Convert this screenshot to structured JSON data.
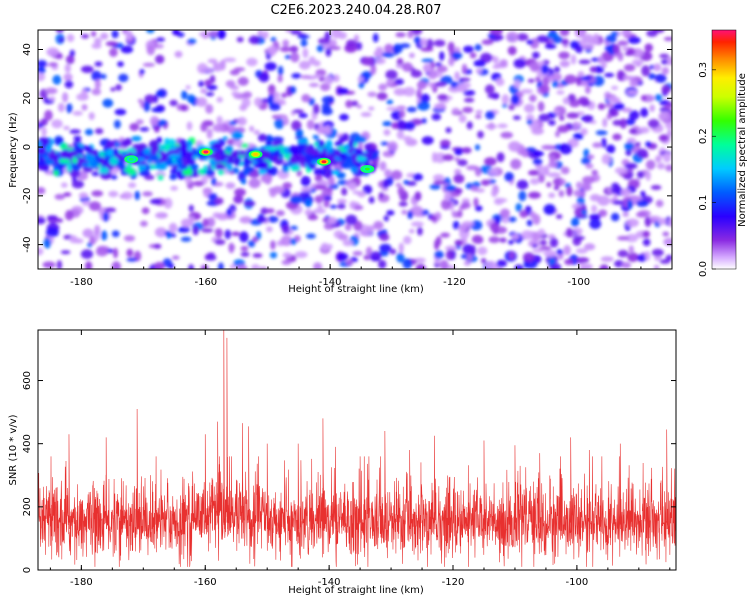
{
  "title": "C2E6.2023.240.04.28.R07",
  "chart_data": [
    {
      "type": "heatmap",
      "xlabel": "Height of straight line (km)",
      "ylabel": "Frequency (Hz)",
      "xlim": [
        -187,
        -85
      ],
      "ylim": [
        -50,
        48
      ],
      "x_ticks": [
        -180,
        -160,
        -140,
        -120,
        -100
      ],
      "y_ticks": [
        -40,
        -20,
        0,
        20,
        40
      ],
      "colorbar": {
        "label": "Normalized spectral amplitude",
        "range": [
          0.0,
          0.36
        ],
        "ticks": [
          0.0,
          0.1,
          0.2,
          0.3
        ],
        "colormap": "rainbow-white-to-red"
      },
      "features": [
        {
          "description": "high-amplitude band",
          "x_range": [
            -187,
            -133
          ],
          "frequency_center": -4,
          "frequency_halfwidth": 6
        }
      ],
      "peak_locations": [
        {
          "x": -160,
          "y": -2,
          "value": 0.36
        },
        {
          "x": -141,
          "y": -6,
          "value": 0.35
        },
        {
          "x": -152,
          "y": -3,
          "value": 0.3
        },
        {
          "x": -172,
          "y": -5,
          "value": 0.2
        },
        {
          "x": -134,
          "y": -9,
          "value": 0.22
        }
      ]
    },
    {
      "type": "line",
      "xlabel": "Height of straight line (km)",
      "ylabel": "SNR (10 * v/v)",
      "xlim": [
        -187,
        -84
      ],
      "ylim": [
        0,
        760
      ],
      "x_ticks": [
        -180,
        -160,
        -140,
        -120,
        -100
      ],
      "y_ticks": [
        0,
        200,
        400,
        600
      ],
      "series_color": "#e8302f",
      "baseline": 150,
      "noise_band": [
        50,
        300
      ],
      "spikes": [
        {
          "x": -157,
          "value": 760
        },
        {
          "x": -156.5,
          "value": 735
        },
        {
          "x": -171,
          "value": 510
        },
        {
          "x": -141,
          "value": 480
        },
        {
          "x": -158,
          "value": 470
        },
        {
          "x": -154,
          "value": 465
        },
        {
          "x": -153,
          "value": 455
        },
        {
          "x": -85.5,
          "value": 445
        },
        {
          "x": -131,
          "value": 440
        },
        {
          "x": -182,
          "value": 430
        },
        {
          "x": -160,
          "value": 430
        },
        {
          "x": -123,
          "value": 425
        },
        {
          "x": -101,
          "value": 420
        },
        {
          "x": -176,
          "value": 420
        },
        {
          "x": -115,
          "value": 410
        },
        {
          "x": -150,
          "value": 400
        },
        {
          "x": -145,
          "value": 400
        },
        {
          "x": -110,
          "value": 395
        },
        {
          "x": -93,
          "value": 400
        },
        {
          "x": -98,
          "value": 380
        },
        {
          "x": -139,
          "value": 390
        },
        {
          "x": -127,
          "value": 380
        },
        {
          "x": -106,
          "value": 370
        },
        {
          "x": -135,
          "value": 360
        }
      ]
    }
  ]
}
